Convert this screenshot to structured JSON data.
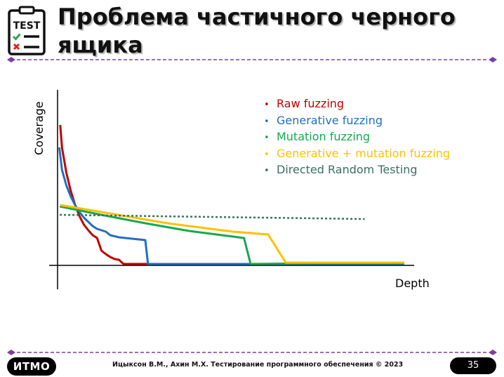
{
  "slide": {
    "icon_label": "TEST",
    "title": "Проблема частичного черного ящика",
    "footer_logo": "ИTMO",
    "footer_text": "Ицыксон В.М., Ахин М.Х. Тестирование программного обеспечения © 2023",
    "page_number": "35",
    "accent_color": "#7b3fa0"
  },
  "chart_data": {
    "type": "line",
    "title": "",
    "xlabel": "Depth",
    "ylabel": "Coverage",
    "axis_ticks": "none",
    "legend_position": "top-right",
    "series": [
      {
        "name": "Raw fuzzing",
        "color": "#c00000",
        "style": "solid",
        "points": [
          [
            0.6,
            100
          ],
          [
            1,
            84
          ],
          [
            2,
            66
          ],
          [
            3,
            53
          ],
          [
            4,
            43
          ],
          [
            5,
            35
          ],
          [
            6,
            29
          ],
          [
            7,
            25
          ],
          [
            8,
            21.5
          ],
          [
            9,
            19.5
          ],
          [
            10,
            10.5
          ],
          [
            11,
            8
          ],
          [
            12,
            6
          ],
          [
            13,
            4.5
          ],
          [
            14,
            4
          ],
          [
            15,
            1
          ],
          [
            32,
            1
          ]
        ]
      },
      {
        "name": "Generative fuzzing",
        "color": "#1f6fbf",
        "style": "solid",
        "points": [
          [
            0.4,
            84
          ],
          [
            1,
            68
          ],
          [
            2,
            57
          ],
          [
            3,
            49
          ],
          [
            4,
            43
          ],
          [
            5,
            38
          ],
          [
            6,
            34
          ],
          [
            7,
            31
          ],
          [
            8,
            28
          ],
          [
            9,
            26
          ],
          [
            10,
            25
          ],
          [
            11,
            24
          ],
          [
            12,
            21.5
          ],
          [
            14,
            20
          ],
          [
            20,
            18
          ],
          [
            20.6,
            1
          ],
          [
            79,
            1
          ]
        ]
      },
      {
        "name": "Mutation fuzzing",
        "color": "#18a84c",
        "style": "solid",
        "points": [
          [
            0.5,
            42
          ],
          [
            10,
            36
          ],
          [
            20,
            30
          ],
          [
            30,
            24.5
          ],
          [
            42.5,
            19.5
          ],
          [
            44,
            1
          ],
          [
            60,
            1.5
          ],
          [
            79,
            1.5
          ]
        ]
      },
      {
        "name": "Generative + mutation fuzzing",
        "color": "#ffc000",
        "style": "solid",
        "points": [
          [
            0.6,
            43
          ],
          [
            10,
            38
          ],
          [
            25,
            30
          ],
          [
            40,
            24
          ],
          [
            48,
            22
          ],
          [
            52,
            2
          ],
          [
            68,
            2
          ],
          [
            79,
            2
          ]
        ]
      },
      {
        "name": "Directed Random Testing",
        "color": "#3b6e62",
        "style": "dotted",
        "points": [
          [
            0.5,
            36
          ],
          [
            70,
            33
          ]
        ]
      }
    ]
  }
}
